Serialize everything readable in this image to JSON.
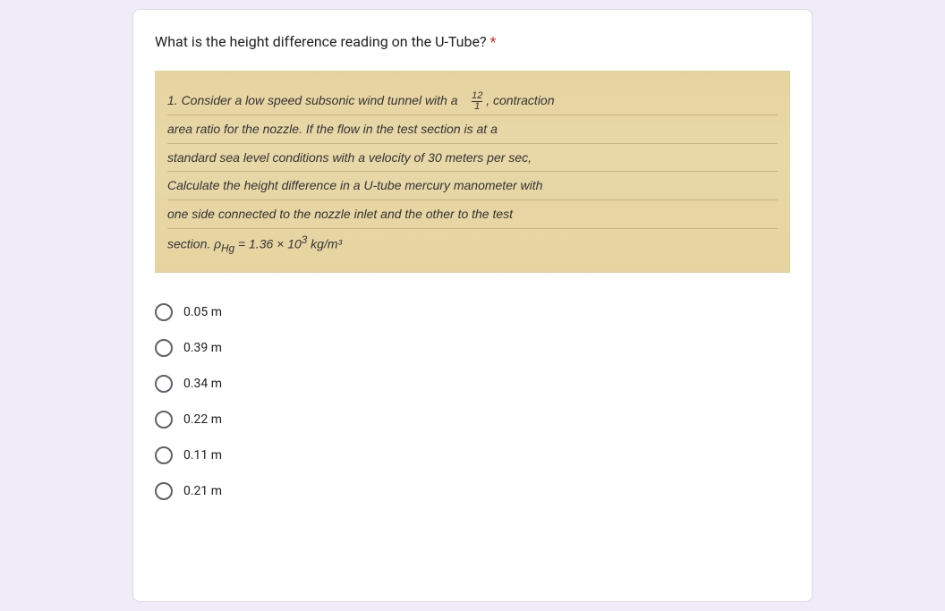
{
  "card": {
    "question": "What is the height difference reading on the U-Tube?",
    "required_mark": "*",
    "handwritten": {
      "line1_a": "1. Consider a low speed subsonic wind tunnel with a",
      "line1_frac_top": "12",
      "line1_frac_bot": "1",
      "line1_b": ", contraction",
      "line2": "area ratio for the nozzle. If the flow in the test section is at a",
      "line3": "standard sea level conditions with a velocity of 30 meters per sec,",
      "line4": "Calculate the height difference in a U-tube mercury manometer with",
      "line5": "one side connected to the nozzle inlet and the other to the test",
      "line6_a": "section.  ρ",
      "line6_sub": "Hg",
      "line6_b": " = 1.36 × 10",
      "line6_sup": "3",
      "line6_unit": " kg/m³"
    },
    "options": [
      "0.05 m",
      "0.39 m",
      "0.34 m",
      "0.22 m",
      "0.11 m",
      "0.21 m"
    ],
    "colors": {
      "page_bg": "#f0ebf8",
      "card_bg": "#ffffff",
      "card_border": "#dadce0",
      "image_bg": "#e8d8a8",
      "text": "#202124",
      "radio_border": "#5f6368",
      "required": "#d93025"
    }
  }
}
